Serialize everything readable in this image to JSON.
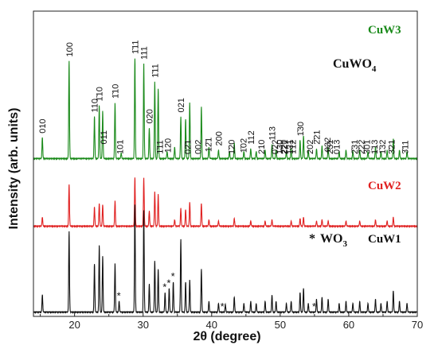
{
  "chart_data": {
    "type": "line",
    "title": "CuWO",
    "title_sub": "4",
    "xlabel": "2θ (degree)",
    "ylabel": "Intensity (arb. units)",
    "xlim": [
      14,
      70
    ],
    "xticks": [
      20,
      30,
      40,
      50,
      60,
      70
    ],
    "grid": false,
    "wo3_label": "WO",
    "wo3_sub": "3",
    "star_symbol": "*",
    "series": [
      {
        "name": "CuW3",
        "color": "#1a8a1a",
        "label_color": "#1a8a1a",
        "peaks": [
          [
            15.3,
            15
          ],
          [
            19.2,
            70
          ],
          [
            22.9,
            30
          ],
          [
            23.6,
            38
          ],
          [
            24.1,
            34
          ],
          [
            25.9,
            40
          ],
          [
            26.8,
            4
          ],
          [
            28.8,
            72
          ],
          [
            30.1,
            68
          ],
          [
            30.9,
            22
          ],
          [
            31.7,
            55
          ],
          [
            32.2,
            50
          ],
          [
            33.5,
            5
          ],
          [
            34.6,
            8
          ],
          [
            35.5,
            30
          ],
          [
            36.2,
            28
          ],
          [
            36.8,
            40
          ],
          [
            38.5,
            37
          ],
          [
            39.6,
            8
          ],
          [
            41.0,
            6
          ],
          [
            42.6,
            5
          ],
          [
            43.3,
            11
          ],
          [
            44.7,
            5
          ],
          [
            45.7,
            7
          ],
          [
            46.5,
            5
          ],
          [
            47.8,
            6
          ],
          [
            48.8,
            10
          ],
          [
            49.4,
            6
          ],
          [
            50.9,
            5
          ],
          [
            51.6,
            7
          ],
          [
            52.9,
            13
          ],
          [
            53.4,
            16
          ],
          [
            54.1,
            6
          ],
          [
            55.3,
            7
          ],
          [
            56.1,
            9
          ],
          [
            57.0,
            8
          ],
          [
            58.6,
            5
          ],
          [
            59.6,
            6
          ],
          [
            60.6,
            5
          ],
          [
            61.6,
            6
          ],
          [
            62.8,
            5
          ],
          [
            63.9,
            8
          ],
          [
            64.7,
            5
          ],
          [
            65.6,
            6
          ],
          [
            66.5,
            14
          ],
          [
            67.4,
            6
          ],
          [
            68.5,
            5
          ]
        ]
      },
      {
        "name": "CuW2",
        "color": "#e02020",
        "label_color": "#e02020",
        "peaks": [
          [
            15.3,
            7
          ],
          [
            19.2,
            33
          ],
          [
            22.9,
            15
          ],
          [
            23.6,
            18
          ],
          [
            24.1,
            17
          ],
          [
            25.9,
            20
          ],
          [
            28.8,
            38
          ],
          [
            30.1,
            38
          ],
          [
            30.9,
            12
          ],
          [
            31.7,
            27
          ],
          [
            32.2,
            25
          ],
          [
            34.6,
            5
          ],
          [
            35.5,
            14
          ],
          [
            36.2,
            13
          ],
          [
            36.8,
            19
          ],
          [
            38.5,
            18
          ],
          [
            39.6,
            5
          ],
          [
            41.0,
            4
          ],
          [
            43.3,
            6
          ],
          [
            45.7,
            4
          ],
          [
            47.8,
            4
          ],
          [
            48.8,
            5
          ],
          [
            51.6,
            4
          ],
          [
            52.9,
            6
          ],
          [
            53.4,
            7
          ],
          [
            55.3,
            4
          ],
          [
            56.1,
            5
          ],
          [
            57.0,
            4
          ],
          [
            59.6,
            4
          ],
          [
            61.6,
            4
          ],
          [
            63.9,
            5
          ],
          [
            65.6,
            4
          ],
          [
            66.5,
            7
          ]
        ]
      },
      {
        "name": "CuW1",
        "color": "#111111",
        "label_color": "#111111",
        "peaks": [
          [
            15.3,
            16
          ],
          [
            19.2,
            75
          ],
          [
            22.9,
            45
          ],
          [
            23.6,
            62
          ],
          [
            24.1,
            52
          ],
          [
            25.9,
            45
          ],
          [
            26.5,
            10
          ],
          [
            28.8,
            100
          ],
          [
            30.1,
            95
          ],
          [
            30.9,
            26
          ],
          [
            31.7,
            48
          ],
          [
            32.2,
            40
          ],
          [
            33.2,
            18
          ],
          [
            33.8,
            22
          ],
          [
            34.4,
            28
          ],
          [
            35.5,
            68
          ],
          [
            36.2,
            28
          ],
          [
            36.8,
            30
          ],
          [
            38.5,
            40
          ],
          [
            39.6,
            10
          ],
          [
            41.0,
            8
          ],
          [
            42.0,
            7
          ],
          [
            43.3,
            14
          ],
          [
            44.7,
            8
          ],
          [
            45.7,
            10
          ],
          [
            46.5,
            8
          ],
          [
            47.8,
            10
          ],
          [
            48.8,
            16
          ],
          [
            49.4,
            10
          ],
          [
            50.9,
            8
          ],
          [
            51.6,
            10
          ],
          [
            52.9,
            18
          ],
          [
            53.4,
            22
          ],
          [
            54.1,
            8
          ],
          [
            55.3,
            12
          ],
          [
            56.1,
            14
          ],
          [
            57.0,
            12
          ],
          [
            58.6,
            8
          ],
          [
            59.6,
            10
          ],
          [
            60.6,
            8
          ],
          [
            61.6,
            10
          ],
          [
            62.8,
            8
          ],
          [
            63.9,
            12
          ],
          [
            64.7,
            8
          ],
          [
            65.6,
            10
          ],
          [
            66.5,
            20
          ],
          [
            67.4,
            10
          ],
          [
            68.5,
            8
          ]
        ]
      }
    ],
    "peak_labels": [
      {
        "text": "010",
        "x": 15.3
      },
      {
        "text": "100",
        "x": 19.2
      },
      {
        "text": "110",
        "x": 22.9
      },
      {
        "text": "1̄10",
        "x": 23.6
      },
      {
        "text": "011",
        "x": 24.2
      },
      {
        "text": "1̄10",
        "x": 25.9
      },
      {
        "text": "101",
        "x": 26.6
      },
      {
        "text": "1̄11",
        "x": 28.8
      },
      {
        "text": "111",
        "x": 30.1
      },
      {
        "text": "020",
        "x": 30.9
      },
      {
        "text": "1̄11",
        "x": 31.7
      },
      {
        "text": "1̄11",
        "x": 32.4
      },
      {
        "text": "120",
        "x": 33.6
      },
      {
        "text": "021",
        "x": 35.5
      },
      {
        "text": "02̄1",
        "x": 36.5
      },
      {
        "text": "002",
        "x": 38.0
      },
      {
        "text": "12̄1",
        "x": 39.5
      },
      {
        "text": "200",
        "x": 41.0
      },
      {
        "text": "1̄20",
        "x": 42.9
      },
      {
        "text": "1̄02",
        "x": 44.6
      },
      {
        "text": "112",
        "x": 45.7
      },
      {
        "text": "210",
        "x": 47.2
      },
      {
        "text": "113",
        "x": 48.8
      },
      {
        "text": "0̄22",
        "x": 49.2
      },
      {
        "text": "2̄20",
        "x": 50.5
      },
      {
        "text": "1̄12",
        "x": 51.8
      },
      {
        "text": "1̄30",
        "x": 52.9
      },
      {
        "text": "130",
        "x": 49.9
      },
      {
        "text": "2̄21",
        "x": 50.6
      },
      {
        "text": "131",
        "x": 51.4
      },
      {
        "text": "202",
        "x": 54.3
      },
      {
        "text": "2̄21",
        "x": 55.3
      },
      {
        "text": "032",
        "x": 56.9
      },
      {
        "text": "2̄31",
        "x": 57.2
      },
      {
        "text": "013",
        "x": 58.2
      },
      {
        "text": "2̄31",
        "x": 60.8
      },
      {
        "text": "2̄22",
        "x": 61.8
      },
      {
        "text": "3̄01",
        "x": 62.6
      },
      {
        "text": "1̄13",
        "x": 63.7
      },
      {
        "text": "1̄32",
        "x": 64.9
      },
      {
        "text": "3̄21",
        "x": 66.2
      },
      {
        "text": "3̄11",
        "x": 68.2
      }
    ],
    "wo3_markers": [
      26.5,
      33.2,
      33.8,
      34.4,
      41.6,
      55.0
    ]
  }
}
